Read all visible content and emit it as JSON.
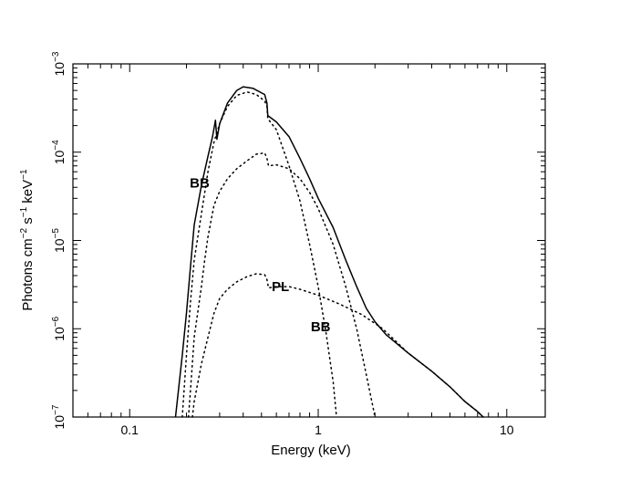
{
  "chart_data": {
    "type": "line",
    "title": "",
    "xlabel": "Energy (keV)",
    "ylabel_parts": [
      "Photons cm",
      "−2",
      " s",
      "−1",
      " keV",
      "−1"
    ],
    "x_scale": "log",
    "y_scale": "log",
    "xlim": [
      0.05,
      16
    ],
    "ylim": [
      1e-07,
      0.001
    ],
    "x_ticks": [
      {
        "value": 0.1,
        "label": "0.1"
      },
      {
        "value": 1,
        "label": "1"
      },
      {
        "value": 10,
        "label": "10"
      }
    ],
    "y_ticks": [
      {
        "value": 1e-07,
        "base": "10",
        "exp": "−7"
      },
      {
        "value": 1e-06,
        "base": "10",
        "exp": "−6"
      },
      {
        "value": 1e-05,
        "base": "10",
        "exp": "−5"
      },
      {
        "value": 0.0001,
        "base": "10",
        "exp": "−4"
      },
      {
        "value": 0.001,
        "base": "10",
        "exp": "−3"
      }
    ],
    "series": [
      {
        "name": "Total",
        "style": "solid",
        "points": [
          [
            0.175,
            1e-07
          ],
          [
            0.19,
            5e-07
          ],
          [
            0.2,
            1.5e-06
          ],
          [
            0.21,
            5e-06
          ],
          [
            0.22,
            1.5e-05
          ],
          [
            0.24,
            4.2e-05
          ],
          [
            0.26,
            9e-05
          ],
          [
            0.275,
            0.00015
          ],
          [
            0.285,
            0.00023
          ],
          [
            0.29,
            0.00014
          ],
          [
            0.3,
            0.00021
          ],
          [
            0.33,
            0.00036
          ],
          [
            0.37,
            0.0005
          ],
          [
            0.4,
            0.00055
          ],
          [
            0.45,
            0.00053
          ],
          [
            0.52,
            0.00045
          ],
          [
            0.535,
            0.00036
          ],
          [
            0.54,
            0.00026
          ],
          [
            0.6,
            0.00022
          ],
          [
            0.7,
            0.00015
          ],
          [
            0.8,
            8.5e-05
          ],
          [
            0.9,
            5e-05
          ],
          [
            1.0,
            3e-05
          ],
          [
            1.2,
            1.4e-05
          ],
          [
            1.4,
            6e-06
          ],
          [
            1.6,
            3e-06
          ],
          [
            1.8,
            1.7e-06
          ],
          [
            2.0,
            1.2e-06
          ],
          [
            2.3,
            8.5e-07
          ],
          [
            3.0,
            5.3e-07
          ],
          [
            4.0,
            3.3e-07
          ],
          [
            5.0,
            2.2e-07
          ],
          [
            6.0,
            1.5e-07
          ],
          [
            7.0,
            1.15e-07
          ],
          [
            7.5,
            1e-07
          ]
        ]
      },
      {
        "name": "BB (soft)",
        "label": "BB",
        "style": "dotted",
        "points": [
          [
            0.19,
            1e-07
          ],
          [
            0.2,
            5e-07
          ],
          [
            0.21,
            2e-06
          ],
          [
            0.22,
            6e-06
          ],
          [
            0.24,
            2e-05
          ],
          [
            0.26,
            6e-05
          ],
          [
            0.28,
            0.00013
          ],
          [
            0.3,
            0.00021
          ],
          [
            0.33,
            0.00033
          ],
          [
            0.37,
            0.00044
          ],
          [
            0.42,
            0.00048
          ],
          [
            0.47,
            0.00045
          ],
          [
            0.52,
            0.00038
          ],
          [
            0.535,
            0.00033
          ],
          [
            0.54,
            0.00024
          ],
          [
            0.6,
            0.00018
          ],
          [
            0.7,
            7e-05
          ],
          [
            0.8,
            2.8e-05
          ],
          [
            0.9,
            9e-06
          ],
          [
            1.0,
            3e-06
          ],
          [
            1.1,
            9e-07
          ],
          [
            1.2,
            2.5e-07
          ],
          [
            1.25,
            1e-07
          ]
        ]
      },
      {
        "name": "BB (hard)",
        "label": "BB",
        "style": "dotted",
        "points": [
          [
            0.205,
            1e-07
          ],
          [
            0.21,
            2e-07
          ],
          [
            0.22,
            8e-07
          ],
          [
            0.24,
            3e-06
          ],
          [
            0.25,
            6e-06
          ],
          [
            0.26,
            1.1e-05
          ],
          [
            0.28,
            2.5e-05
          ],
          [
            0.3,
            3.6e-05
          ],
          [
            0.33,
            5e-05
          ],
          [
            0.37,
            6.5e-05
          ],
          [
            0.42,
            8e-05
          ],
          [
            0.47,
            9.5e-05
          ],
          [
            0.52,
            9.8e-05
          ],
          [
            0.535,
            8.5e-05
          ],
          [
            0.545,
            7e-05
          ],
          [
            0.6,
            7.2e-05
          ],
          [
            0.7,
            6.5e-05
          ],
          [
            0.8,
            5e-05
          ],
          [
            0.9,
            3.5e-05
          ],
          [
            1.0,
            2.3e-05
          ],
          [
            1.2,
            9e-06
          ],
          [
            1.4,
            3e-06
          ],
          [
            1.6,
            1e-06
          ],
          [
            1.8,
            3e-07
          ],
          [
            2.0,
            1e-07
          ]
        ]
      },
      {
        "name": "PL",
        "label": "PL",
        "style": "dotted",
        "points": [
          [
            0.215,
            1e-07
          ],
          [
            0.22,
            1.5e-07
          ],
          [
            0.24,
            4e-07
          ],
          [
            0.26,
            8e-07
          ],
          [
            0.28,
            1.5e-06
          ],
          [
            0.3,
            2.2e-06
          ],
          [
            0.33,
            2.8e-06
          ],
          [
            0.37,
            3.4e-06
          ],
          [
            0.42,
            3.9e-06
          ],
          [
            0.47,
            4.2e-06
          ],
          [
            0.52,
            4.1e-06
          ],
          [
            0.535,
            3.6e-06
          ],
          [
            0.545,
            2.9e-06
          ],
          [
            0.6,
            3e-06
          ],
          [
            0.7,
            3e-06
          ],
          [
            0.8,
            2.8e-06
          ],
          [
            1.0,
            2.4e-06
          ],
          [
            1.3,
            1.9e-06
          ],
          [
            1.7,
            1.45e-06
          ],
          [
            2.2,
            1e-06
          ],
          [
            3.0,
            5.3e-07
          ],
          [
            4.0,
            3.3e-07
          ],
          [
            5.0,
            2.2e-07
          ],
          [
            6.0,
            1.5e-07
          ],
          [
            7.0,
            1.15e-07
          ],
          [
            7.5,
            1e-07
          ]
        ]
      }
    ],
    "annotations": [
      {
        "text": "BB",
        "x": 0.235,
        "y": 4.5e-05
      },
      {
        "text": "BB",
        "x": 1.03,
        "y": 1.05e-06
      },
      {
        "text": "PL",
        "x": 0.63,
        "y": 3e-06
      }
    ]
  }
}
